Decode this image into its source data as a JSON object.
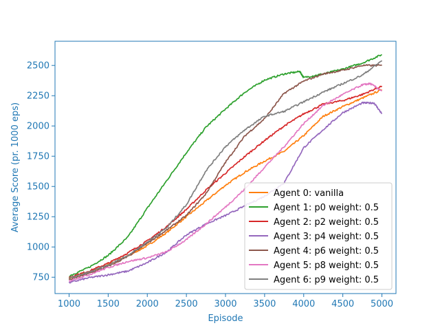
{
  "chart_data": {
    "type": "line",
    "xlabel": "Episode",
    "ylabel": "Average Score (pr. 1000 eps)",
    "xlim": [
      820,
      5180
    ],
    "ylim": [
      615,
      2700
    ],
    "xticks": [
      1000,
      1500,
      2000,
      2500,
      3000,
      3500,
      4000,
      4500,
      5000
    ],
    "yticks": [
      750,
      1000,
      1250,
      1500,
      1750,
      2000,
      2250,
      2500
    ],
    "grid": false,
    "legend_position": "lower-right",
    "axis_color": "#1f77b4",
    "series": [
      {
        "name": "Agent 0: vanilla",
        "color": "#ff7f0e",
        "x": [
          1000,
          1250,
          1500,
          1750,
          2000,
          2250,
          2500,
          2750,
          3000,
          3250,
          3500,
          3750,
          4000,
          4250,
          4500,
          4750,
          5000
        ],
        "y": [
          745,
          790,
          855,
          925,
          1010,
          1120,
          1250,
          1380,
          1510,
          1620,
          1710,
          1790,
          1920,
          2080,
          2160,
          2230,
          2300
        ]
      },
      {
        "name": "Agent 1: p0 weight: 0.5",
        "color": "#2ca02c",
        "x": [
          1000,
          1250,
          1500,
          1750,
          2000,
          2250,
          2500,
          2750,
          3000,
          3250,
          3500,
          3750,
          3950,
          4000,
          4250,
          4500,
          4750,
          5000
        ],
        "y": [
          760,
          830,
          930,
          1080,
          1320,
          1550,
          1780,
          1990,
          2140,
          2280,
          2380,
          2430,
          2450,
          2400,
          2430,
          2470,
          2520,
          2590
        ]
      },
      {
        "name": "Agent 2: p2 weight: 0.5",
        "color": "#d62728",
        "x": [
          1000,
          1250,
          1500,
          1750,
          2000,
          2250,
          2500,
          2750,
          3000,
          3250,
          3500,
          3750,
          4000,
          4250,
          4500,
          4750,
          5000
        ],
        "y": [
          750,
          800,
          865,
          950,
          1050,
          1170,
          1310,
          1470,
          1610,
          1750,
          1880,
          2000,
          2100,
          2180,
          2210,
          2260,
          2330
        ]
      },
      {
        "name": "Agent 3: p4 weight: 0.5",
        "color": "#9467bd",
        "x": [
          1000,
          1250,
          1500,
          1750,
          2000,
          2250,
          2500,
          2750,
          3000,
          3250,
          3500,
          3750,
          4000,
          4250,
          4500,
          4750,
          4900,
          5000
        ],
        "y": [
          705,
          745,
          770,
          800,
          870,
          960,
          1100,
          1190,
          1260,
          1340,
          1420,
          1530,
          1820,
          1970,
          2110,
          2190,
          2190,
          2100
        ]
      },
      {
        "name": "Agent 4: p6 weight: 0.5",
        "color": "#8c564b",
        "x": [
          1000,
          1250,
          1500,
          1750,
          2000,
          2250,
          2500,
          2750,
          3000,
          3250,
          3500,
          3750,
          4000,
          4250,
          4500,
          4750,
          5000
        ],
        "y": [
          730,
          780,
          840,
          920,
          1030,
          1140,
          1260,
          1440,
          1700,
          1920,
          2060,
          2270,
          2370,
          2430,
          2460,
          2500,
          2500
        ]
      },
      {
        "name": "Agent 5: p8 weight: 0.5",
        "color": "#e377c2",
        "x": [
          1000,
          1250,
          1500,
          1750,
          2000,
          2250,
          2500,
          2750,
          3000,
          3250,
          3500,
          3750,
          4000,
          4250,
          4500,
          4750,
          4850,
          5000
        ],
        "y": [
          720,
          770,
          830,
          880,
          910,
          960,
          1060,
          1190,
          1330,
          1480,
          1660,
          1830,
          2020,
          2170,
          2260,
          2340,
          2350,
          2290
        ]
      },
      {
        "name": "Agent 6: p9 weight: 0.5",
        "color": "#7f7f7f",
        "x": [
          1000,
          1250,
          1500,
          1750,
          2000,
          2250,
          2500,
          2750,
          3000,
          3250,
          3500,
          3750,
          4000,
          4250,
          4500,
          4750,
          5000
        ],
        "y": [
          740,
          790,
          850,
          930,
          1040,
          1160,
          1350,
          1630,
          1830,
          1970,
          2080,
          2120,
          2200,
          2280,
          2350,
          2420,
          2540
        ]
      }
    ]
  }
}
